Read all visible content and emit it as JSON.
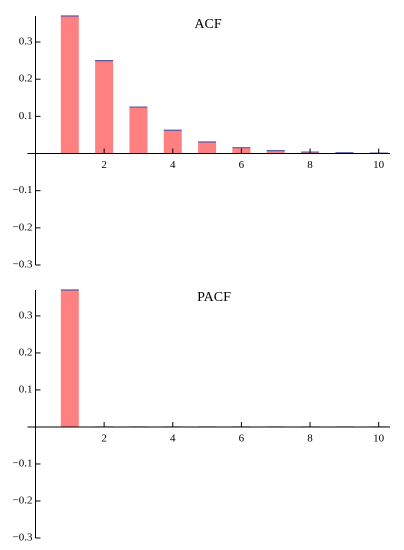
{
  "chart_data": [
    {
      "type": "bar",
      "title": "ACF",
      "x": [
        1,
        2,
        3,
        4,
        5,
        6,
        7,
        8,
        9,
        10
      ],
      "values": [
        0.37,
        0.25,
        0.125,
        0.0625,
        0.031,
        0.0156,
        0.0078,
        0.0039,
        0.002,
        0.001
      ],
      "color": "#ff8080",
      "cap_color": "#5a5aa0",
      "xlim": [
        0,
        10.33
      ],
      "xticks": [
        2,
        4,
        6,
        8,
        10
      ],
      "ylim": [
        -0.3,
        0.37
      ],
      "yticks": [
        {
          "value": -0.3,
          "label": "−0.3"
        },
        {
          "value": -0.2,
          "label": "−0.2"
        },
        {
          "value": -0.1,
          "label": "−0.1"
        },
        0.1,
        0.2,
        0.3
      ]
    },
    {
      "type": "bar",
      "title": "PACF",
      "x": [
        1,
        2,
        3,
        4,
        5,
        6,
        7,
        8,
        9,
        10
      ],
      "values": [
        0.37,
        0,
        0,
        0,
        0,
        0,
        0,
        0,
        0,
        0
      ],
      "color": "#ff8080",
      "cap_color": "#5a5aa0",
      "xlim": [
        0,
        10.33
      ],
      "xticks": [
        2,
        4,
        6,
        8,
        10
      ],
      "ylim": [
        -0.3,
        0.37
      ],
      "yticks": [
        {
          "value": -0.3,
          "label": "−0.3"
        },
        {
          "value": -0.2,
          "label": "−0.2"
        },
        {
          "value": -0.1,
          "label": "−0.1"
        },
        0.1,
        0.2,
        0.3
      ]
    }
  ]
}
